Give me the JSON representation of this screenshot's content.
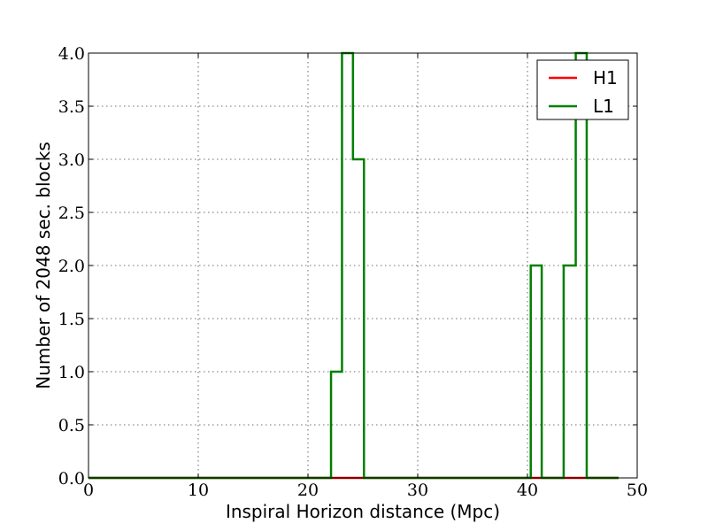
{
  "chart_data": {
    "type": "histogram",
    "xlabel": "Inspiral Horizon distance (Mpc)",
    "ylabel": "Number of 2048 sec. blocks",
    "xlim": [
      0,
      50
    ],
    "ylim": [
      0,
      4.0
    ],
    "xticks": [
      "0",
      "10",
      "20",
      "30",
      "40",
      "50"
    ],
    "xtick_values": [
      0,
      10,
      20,
      30,
      40,
      50
    ],
    "yticks": [
      "0.0",
      "0.5",
      "1.0",
      "1.5",
      "2.0",
      "2.5",
      "3.0",
      "3.5",
      "4.0"
    ],
    "ytick_values": [
      0,
      0.5,
      1.0,
      1.5,
      2.0,
      2.5,
      3.0,
      3.5,
      4.0
    ],
    "grid": true,
    "legend_position": "top-right",
    "bin_edges": [
      0,
      22.1,
      23.1,
      24.1,
      25.1,
      40.3,
      41.3,
      43.3,
      44.4,
      45.4,
      48.3
    ],
    "series": [
      {
        "name": "H1",
        "color": "#ff0000",
        "counts": [
          0,
          0,
          0,
          0,
          0,
          0,
          0,
          0,
          0,
          0
        ]
      },
      {
        "name": "L1",
        "color": "#007f00",
        "counts": [
          0,
          1,
          4,
          3,
          0,
          2,
          0,
          2,
          4,
          0
        ]
      }
    ]
  }
}
